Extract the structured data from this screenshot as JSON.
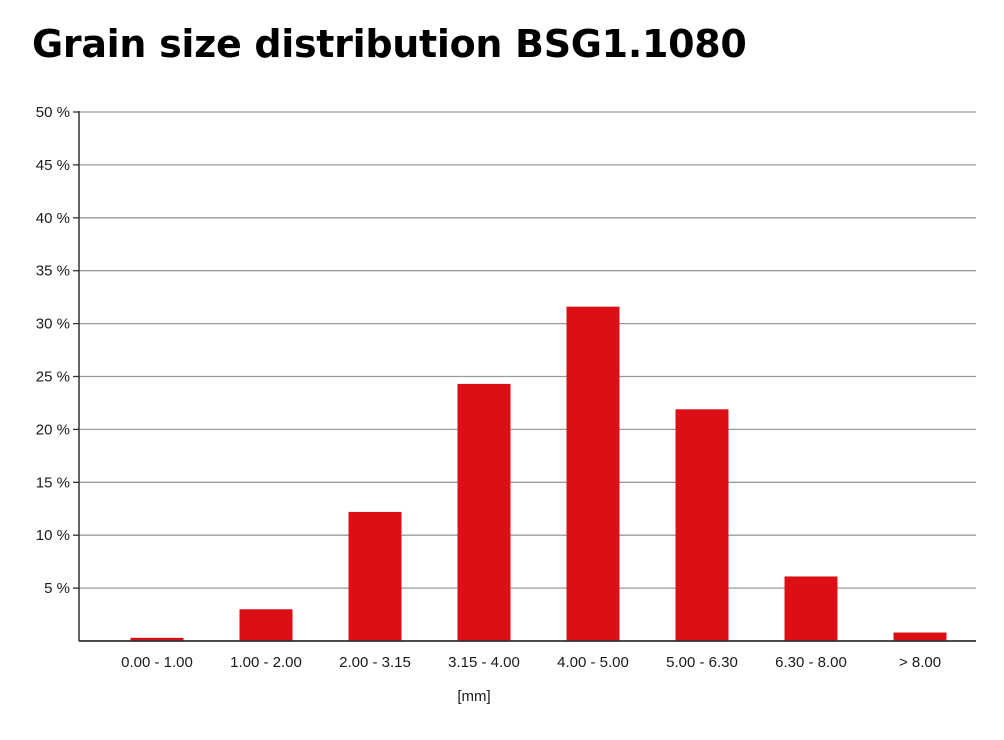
{
  "title": "Grain size distribution BSG1.1080",
  "colors": {
    "bar": "#dc0f17",
    "grid": "#9a9a9a",
    "axis": "#333333"
  },
  "chart_data": {
    "type": "bar",
    "title": "Grain size distribution BSG1.1080",
    "xlabel": "[mm]",
    "ylabel": "",
    "categories": [
      "0.00 - 1.00",
      "1.00 - 2.00",
      "2.00 - 3.15",
      "3.15 - 4.00",
      "4.00 - 5.00",
      "5.00 - 6.30",
      "6.30 - 8.00",
      "> 8.00"
    ],
    "values": [
      0.3,
      3.0,
      12.2,
      24.3,
      31.6,
      21.9,
      6.1,
      0.8
    ],
    "unit": "%",
    "ylim": [
      0,
      50
    ],
    "yticks": [
      5,
      10,
      15,
      20,
      25,
      30,
      35,
      40,
      45,
      50
    ],
    "ytick_labels": [
      "5 %",
      "10 %",
      "15 %",
      "20 %",
      "25 %",
      "30 %",
      "35 %",
      "40 %",
      "45 %",
      "50 %"
    ],
    "grid": true,
    "legend": "none"
  }
}
